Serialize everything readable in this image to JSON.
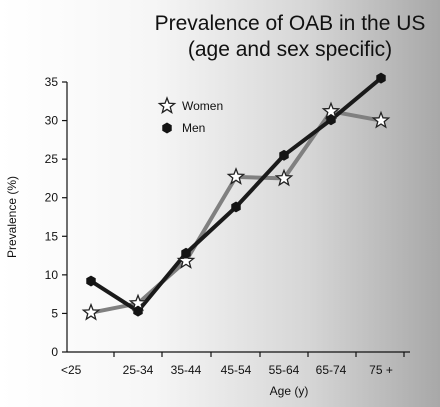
{
  "chart_data": {
    "type": "line",
    "title_lines": [
      "Prevalence of OAB in the US",
      "(age and sex specific)"
    ],
    "xlabel": "Age (y)",
    "ylabel": "Prevalence (%)",
    "categories": [
      "<25",
      "25-34",
      "35-44",
      "45-54",
      "55-64",
      "65-74",
      "75 +"
    ],
    "ylim": [
      0,
      35
    ],
    "yticks": [
      0,
      5,
      10,
      15,
      20,
      25,
      30,
      35
    ],
    "grid": false,
    "legend_position": "top-left",
    "series": [
      {
        "name": "Women",
        "marker": "star",
        "line_color": "#808080",
        "values": [
          5.1,
          6.3,
          11.8,
          22.7,
          22.5,
          31.2,
          30.0
        ]
      },
      {
        "name": "Men",
        "marker": "hexagon",
        "line_color": "#1a1a1a",
        "values": [
          9.2,
          5.3,
          12.8,
          18.8,
          25.5,
          30.1,
          35.5
        ]
      }
    ]
  }
}
